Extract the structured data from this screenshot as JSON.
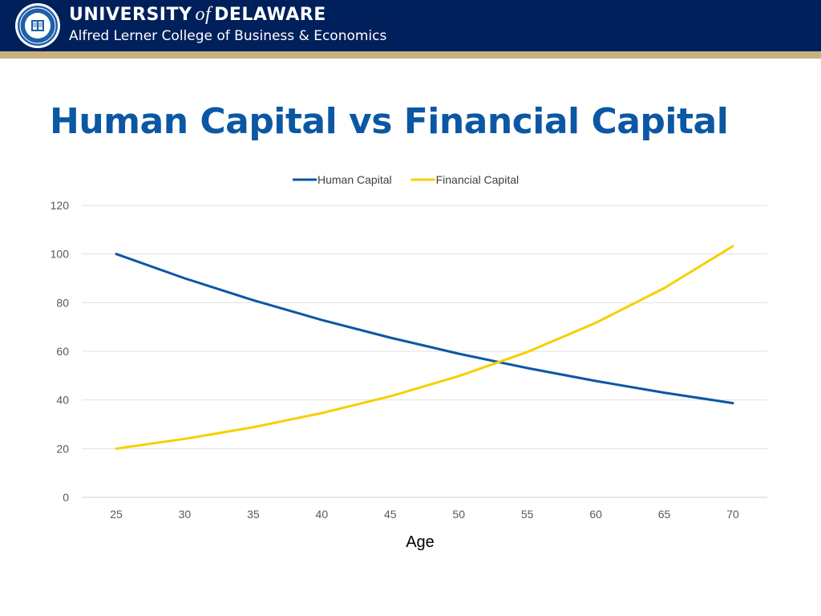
{
  "header": {
    "university_part1": "UNIVERSITY",
    "university_of": "of",
    "university_part2": "DELAWARE",
    "college": "Alfred Lerner College of Business & Economics",
    "banner_color": "#00205b",
    "stripe_color": "#c8b27c",
    "seal_icon": "university-seal-icon"
  },
  "slide": {
    "title": "Human Capital vs Financial Capital",
    "title_color": "#0b57a4"
  },
  "chart_data": {
    "type": "line",
    "title": "",
    "xlabel": "Age",
    "ylabel": "",
    "x": [
      25,
      30,
      35,
      40,
      45,
      50,
      55,
      60,
      65,
      70
    ],
    "ylim": [
      0,
      120
    ],
    "yticks": [
      0,
      20,
      40,
      60,
      80,
      100,
      120
    ],
    "grid": true,
    "legend_position": "top",
    "series": [
      {
        "name": "Human Capital",
        "color": "#0b57a4",
        "values": [
          100,
          90,
          81,
          72.9,
          65.6,
          59,
          53.1,
          47.8,
          43,
          38.7
        ]
      },
      {
        "name": "Financial Capital",
        "color": "#f5d000",
        "values": [
          20,
          24,
          28.8,
          34.6,
          41.5,
          49.8,
          59.7,
          71.7,
          86,
          103.2
        ]
      }
    ]
  }
}
